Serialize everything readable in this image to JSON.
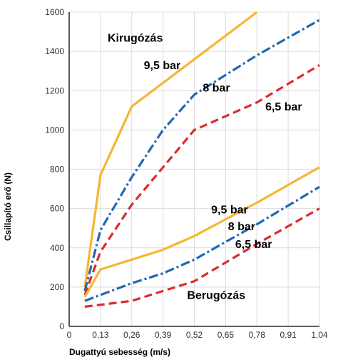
{
  "chart_data": {
    "type": "line",
    "xlabel": "Dugattyú sebesség (m/s)",
    "ylabel": "Csillapító erő  (N)",
    "x_ticks": [
      "0",
      "0,13",
      "0,26",
      "0,39",
      "0,52",
      "0,65",
      "0,78",
      "0,91",
      "1,04"
    ],
    "y_ticks": [
      "0",
      "200",
      "400",
      "600",
      "800",
      "1000",
      "1200",
      "1400",
      "1600"
    ],
    "xlim": [
      0,
      1.04
    ],
    "ylim": [
      0,
      1600
    ],
    "grid": true,
    "annotations": [
      {
        "id": "kirugozas",
        "text": "Kirugózás",
        "x": 0.16,
        "y": 1450
      },
      {
        "id": "k95",
        "text": "9,5 bar",
        "x": 0.31,
        "y": 1310
      },
      {
        "id": "k8",
        "text": "8 bar",
        "x": 0.555,
        "y": 1195
      },
      {
        "id": "k65",
        "text": "6,5 bar",
        "x": 0.815,
        "y": 1100
      },
      {
        "id": "b95",
        "text": "9,5 bar",
        "x": 0.59,
        "y": 575
      },
      {
        "id": "b8",
        "text": "8 bar",
        "x": 0.66,
        "y": 490
      },
      {
        "id": "b65",
        "text": "6,5 bar",
        "x": 0.69,
        "y": 400
      },
      {
        "id": "berugozas",
        "text": "Berugózás",
        "x": 0.49,
        "y": 140
      }
    ],
    "series": [
      {
        "group": "kirugozas",
        "pressure": "9,5 bar",
        "color": "#f5b731",
        "dash": "solid",
        "x": [
          0.065,
          0.13,
          0.26,
          0.52,
          0.78
        ],
        "y": [
          200,
          770,
          1120,
          1360,
          1600
        ]
      },
      {
        "group": "kirugozas",
        "pressure": "8 bar",
        "color": "#1f68b4",
        "dash": "dashdot",
        "x": [
          0.065,
          0.13,
          0.26,
          0.39,
          0.52,
          0.78,
          1.04
        ],
        "y": [
          180,
          490,
          760,
          1000,
          1180,
          1380,
          1560
        ]
      },
      {
        "group": "kirugozas",
        "pressure": "6,5 bar",
        "color": "#dd2b2b",
        "dash": "dashed",
        "x": [
          0.065,
          0.13,
          0.26,
          0.52,
          0.78,
          1.04
        ],
        "y": [
          160,
          380,
          620,
          1000,
          1140,
          1330
        ]
      },
      {
        "group": "berugozas",
        "pressure": "9,5 bar",
        "color": "#f5b731",
        "dash": "solid",
        "x": [
          0.065,
          0.13,
          0.26,
          0.39,
          0.52,
          0.78,
          1.04
        ],
        "y": [
          150,
          290,
          340,
          390,
          460,
          630,
          810
        ]
      },
      {
        "group": "berugozas",
        "pressure": "8 bar",
        "color": "#1f68b4",
        "dash": "dashdot",
        "x": [
          0.065,
          0.13,
          0.26,
          0.39,
          0.52,
          0.78,
          1.04
        ],
        "y": [
          130,
          160,
          220,
          270,
          340,
          520,
          710
        ]
      },
      {
        "group": "berugozas",
        "pressure": "6,5 bar",
        "color": "#dd2b2b",
        "dash": "dashed",
        "x": [
          0.065,
          0.13,
          0.26,
          0.39,
          0.52,
          0.78,
          1.04
        ],
        "y": [
          100,
          110,
          130,
          180,
          230,
          420,
          600
        ]
      }
    ]
  }
}
